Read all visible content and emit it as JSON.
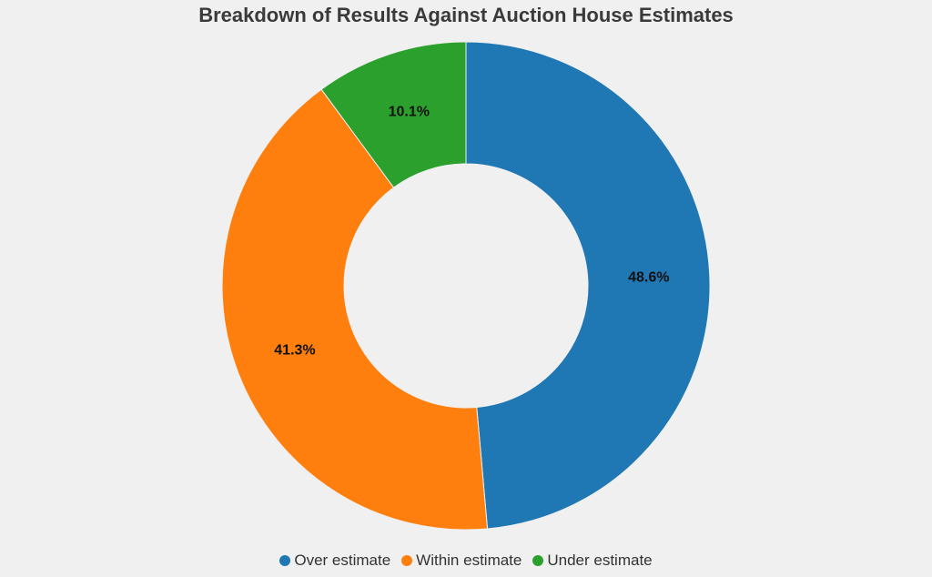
{
  "chart_data": {
    "type": "pie",
    "variant": "donut",
    "title": "Breakdown of Results Against Auction House Estimates",
    "legend_position": "bottom",
    "slices": [
      {
        "label": "Over estimate",
        "value": 48.6,
        "display": "48.6%",
        "color": "#1f77b4"
      },
      {
        "label": "Within estimate",
        "value": 41.3,
        "display": "41.3%",
        "color": "#ff7f0e"
      },
      {
        "label": "Under estimate",
        "value": 10.1,
        "display": "10.1%",
        "color": "#2ca02c"
      }
    ]
  }
}
